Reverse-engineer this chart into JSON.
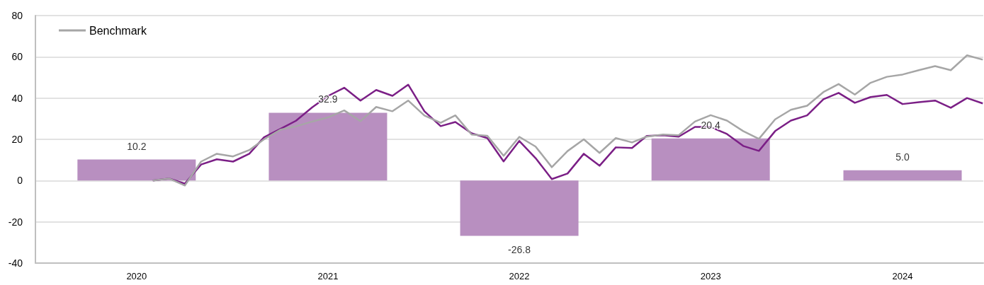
{
  "chart_data": {
    "type": "bar",
    "xlim": [
      "2019-12-21",
      "2024-12-02"
    ],
    "xticks": [
      {
        "value": "2020-07-01",
        "label": "2020"
      },
      {
        "value": "2021-07-01",
        "label": "2021"
      },
      {
        "value": "2022-07-01",
        "label": "2022"
      },
      {
        "value": "2023-07-01",
        "label": "2023"
      },
      {
        "value": "2024-07-01",
        "label": "2024"
      }
    ],
    "ylim": [
      -40,
      80
    ],
    "yticks": [
      -40,
      -20,
      0,
      20,
      40,
      60,
      80
    ],
    "grid": "y",
    "legend": "top left",
    "series": [
      {
        "color": "#b88fc0",
        "x": [
          "2020-07-01",
          "2021-07-01",
          "2022-07-01",
          "2023-07-01",
          "2024-07-01"
        ],
        "values": [
          10.2,
          32.9,
          -26.8,
          20.4,
          5.0
        ],
        "value_labels": [
          "10.2",
          "32.9",
          "-26.8",
          "20.4",
          "5.0"
        ]
      },
      {
        "type": "line",
        "color": "#7b1f86",
        "x": [
          "2020-08",
          "2020-09",
          "2020-10",
          "2020-11",
          "2020-12",
          "2021-01",
          "2021-02",
          "2021-03",
          "2021-04",
          "2021-05",
          "2021-06",
          "2021-07",
          "2021-08",
          "2021-09",
          "2021-10",
          "2021-11",
          "2021-12",
          "2022-01",
          "2022-02",
          "2022-03",
          "2022-04",
          "2022-05",
          "2022-06",
          "2022-07",
          "2022-08",
          "2022-09",
          "2022-10",
          "2022-11",
          "2022-12",
          "2023-01",
          "2023-02",
          "2023-03",
          "2023-04",
          "2023-05",
          "2023-06",
          "2023-07",
          "2023-08",
          "2023-09",
          "2023-10",
          "2023-11",
          "2023-12",
          "2024-01",
          "2024-02",
          "2024-03",
          "2024-04",
          "2024-05",
          "2024-06",
          "2024-07",
          "2024-08",
          "2024-09",
          "2024-10",
          "2024-11",
          "2024-12"
        ],
        "values": [
          0,
          1.0,
          -1.5,
          7.8,
          10.3,
          9.2,
          13,
          21,
          25,
          29,
          35.5,
          41,
          45,
          38.8,
          43.9,
          41.1,
          46.5,
          33.6,
          26.4,
          28.4,
          22.9,
          20.6,
          9.3,
          19.2,
          10.9,
          0.7,
          3.4,
          13,
          7.2,
          16.1,
          15.8,
          21.6,
          22,
          21.3,
          26,
          26,
          22.6,
          16.8,
          14.4,
          24,
          29.1,
          31.6,
          39.4,
          42.5,
          37.7,
          40.5,
          41.5,
          37.1,
          38,
          38.8,
          35.3,
          40,
          37.4
        ]
      },
      {
        "type": "line",
        "name": "Benchmark",
        "color": "#a6a6a6",
        "x": [
          "2020-08",
          "2020-09",
          "2020-10",
          "2020-11",
          "2020-12",
          "2021-01",
          "2021-02",
          "2021-03",
          "2021-04",
          "2021-05",
          "2021-06",
          "2021-07",
          "2021-08",
          "2021-09",
          "2021-10",
          "2021-11",
          "2021-12",
          "2022-01",
          "2022-02",
          "2022-03",
          "2022-04",
          "2022-05",
          "2022-06",
          "2022-07",
          "2022-08",
          "2022-09",
          "2022-10",
          "2022-11",
          "2022-12",
          "2023-01",
          "2023-02",
          "2023-03",
          "2023-04",
          "2023-05",
          "2023-06",
          "2023-07",
          "2023-08",
          "2023-09",
          "2023-10",
          "2023-11",
          "2023-12",
          "2024-01",
          "2024-02",
          "2024-03",
          "2024-04",
          "2024-05",
          "2024-06",
          "2024-07",
          "2024-08",
          "2024-09",
          "2024-10",
          "2024-11",
          "2024-12"
        ],
        "values": [
          0,
          1.0,
          -2.4,
          9.2,
          13,
          11.7,
          14.8,
          20,
          24.6,
          26.3,
          28.6,
          30.6,
          34,
          28.8,
          35.7,
          33.6,
          38.8,
          31.5,
          28,
          31.6,
          22.3,
          21.7,
          12,
          21.2,
          16.5,
          6.5,
          14.3,
          20,
          13.4,
          20.6,
          18.5,
          21.3,
          22.3,
          22,
          28.6,
          31.7,
          29.1,
          24,
          20.2,
          29.7,
          34.3,
          36.3,
          42.9,
          46.8,
          41.7,
          47.4,
          50.3,
          51.4,
          53.5,
          55.5,
          53.5,
          60.7,
          58.6
        ]
      }
    ]
  }
}
